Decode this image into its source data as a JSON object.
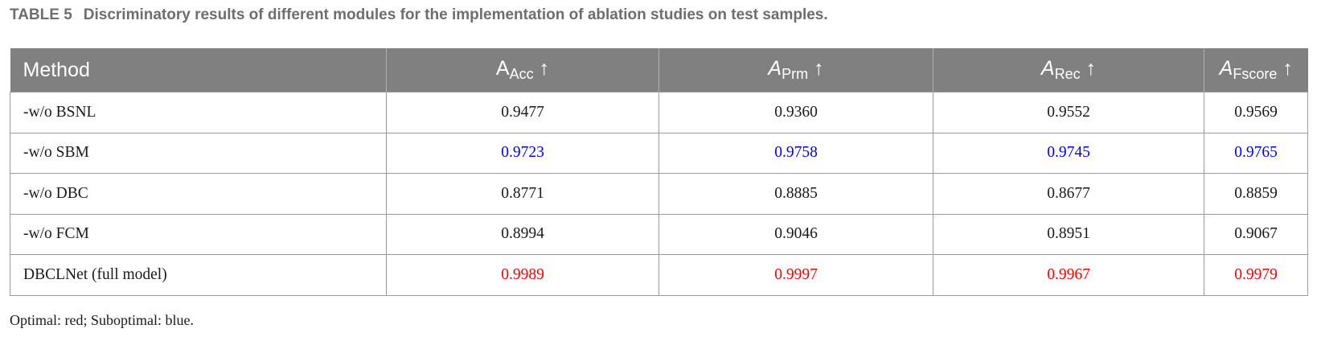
{
  "caption": {
    "label": "TABLE 5",
    "title": "Discriminatory results of different modules for the implementation of ablation studies on test samples."
  },
  "table": {
    "header": [
      {
        "main": "Method"
      },
      {
        "main": "A",
        "sub": "Acc",
        "arrow": "↑",
        "italic": false
      },
      {
        "main": "A",
        "sub": "Prm",
        "arrow": "↑",
        "italic": true
      },
      {
        "main": "A",
        "sub": "Rec",
        "arrow": "↑",
        "italic": true
      },
      {
        "main": "A",
        "sub": "Fscore",
        "arrow": "↑",
        "italic": true
      }
    ],
    "rows": [
      {
        "cells": [
          "-w/o BSNL",
          "0.9477",
          "0.9360",
          "0.9552",
          "0.9569"
        ],
        "value_color": "#1a1a1a"
      },
      {
        "cells": [
          "-w/o SBM",
          "0.9723",
          "0.9758",
          "0.9745",
          "0.9765"
        ],
        "value_color": "#0000ff"
      },
      {
        "cells": [
          "-w/o DBC",
          "0.8771",
          "0.8885",
          "0.8677",
          "0.8859"
        ],
        "value_color": "#1a1a1a"
      },
      {
        "cells": [
          "-w/o FCM",
          "0.8994",
          "0.9046",
          "0.8951",
          "0.9067"
        ],
        "value_color": "#1a1a1a"
      },
      {
        "cells": [
          "DBCLNet (full model)",
          "0.9989",
          "0.9997",
          "0.9967",
          "0.9979"
        ],
        "value_color": "#ff0000"
      }
    ]
  },
  "footnote": "Optimal: red; Suboptimal: blue."
}
